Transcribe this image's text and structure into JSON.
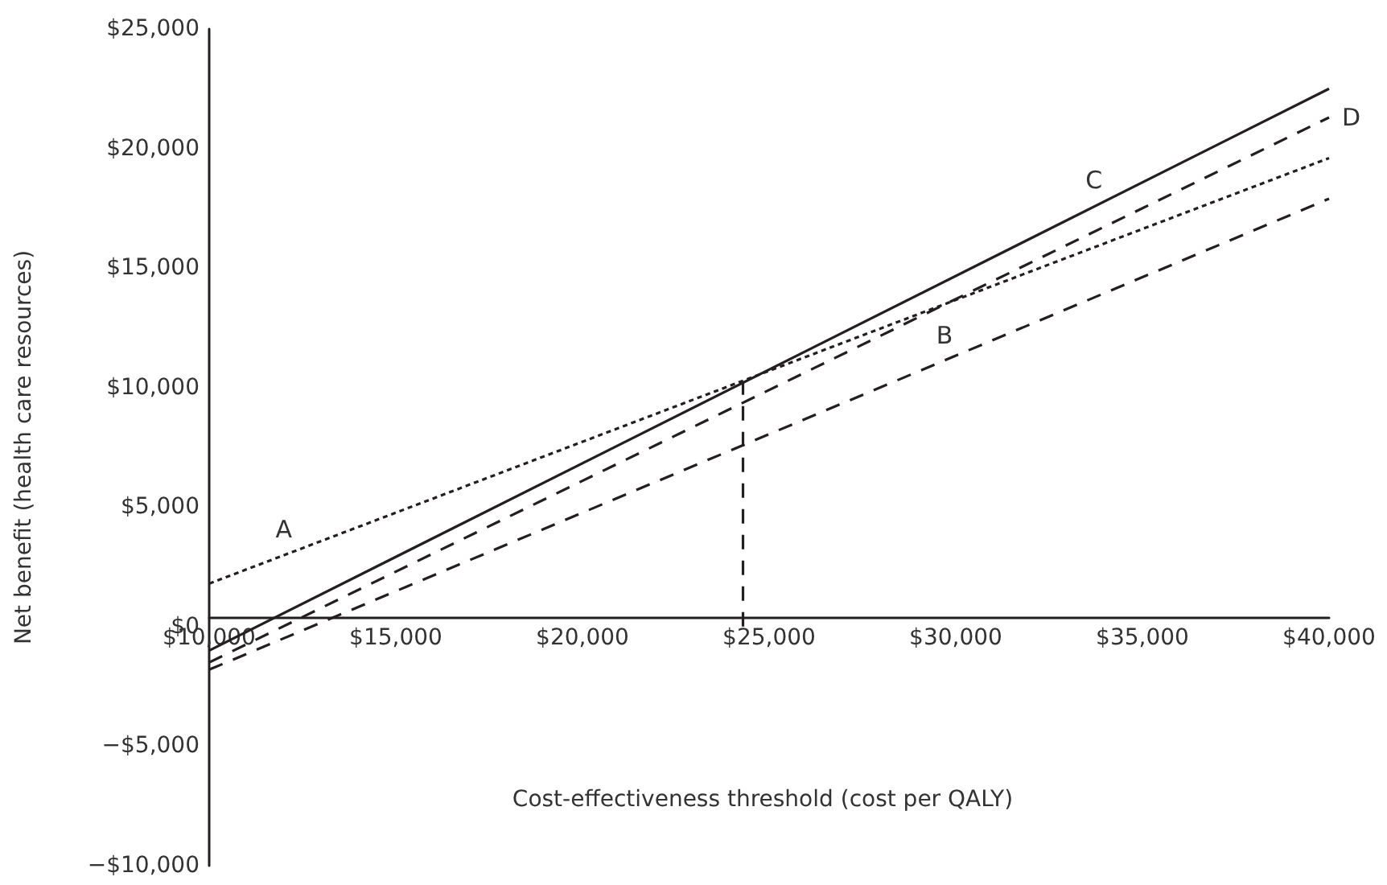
{
  "chart_data": {
    "type": "line",
    "ylabel": "Net benefit (health care resources)",
    "series": [
      {
        "x": [
          10000,
          40000
        ],
        "values": [
          1800,
          19600
        ],
        "color": "#231f20",
        "line_style": "dotted"
      },
      {
        "x": [
          10000,
          40000
        ],
        "values": [
          -1800,
          17900
        ],
        "color": "#231f20",
        "line_style": "dashed"
      },
      {
        "x": [
          10000,
          40000
        ],
        "values": [
          -1000,
          22500
        ],
        "color": "#231f20",
        "line_style": "solid"
      },
      {
        "x": [
          10000,
          40000
        ],
        "values": [
          -1500,
          21300
        ],
        "color": "#231f20",
        "line_style": "dashed"
      },
      {
        "x": [
          24300,
          24300
        ],
        "values": [
          0,
          10200
        ],
        "color": "#231f20",
        "line_style": "dashed"
      }
    ],
    "annotations": [
      {
        "text": "A",
        "x": 12000,
        "y": 3000
      },
      {
        "text": "B",
        "x": 29700,
        "y": 11100
      },
      {
        "text": "C",
        "x": 33700,
        "y": 17600
      },
      {
        "text": "D",
        "x": 40000,
        "y": 21300
      },
      "Cost-effectiveness threshold (cost per QALY)"
    ],
    "xlim": [
      10000,
      40000
    ],
    "ylim": [
      -10000,
      25000
    ],
    "xticks": [
      {
        "value": 10000,
        "label": "$10,000"
      },
      {
        "value": 15000,
        "label": "$15,000"
      },
      {
        "value": 20000,
        "label": "$20,000"
      },
      {
        "value": 25000,
        "label": "$25,000"
      },
      {
        "value": 30000,
        "label": "$30,000"
      },
      {
        "value": 35000,
        "label": "$35,000"
      },
      {
        "value": 40000,
        "label": "$40,000"
      }
    ],
    "yticks": [
      {
        "value": -10000,
        "label": "−$10,000"
      },
      {
        "value": -5000,
        "label": "−$5,000"
      },
      {
        "value": 0,
        "label": "$0"
      },
      {
        "value": 5000,
        "label": "$5,000"
      },
      {
        "value": 10000,
        "label": "$10,000"
      },
      {
        "value": 15000,
        "label": "$15,000"
      },
      {
        "value": 20000,
        "label": "$20,000"
      },
      {
        "value": 25000,
        "label": "$25,000"
      }
    ],
    "marker": "none"
  }
}
